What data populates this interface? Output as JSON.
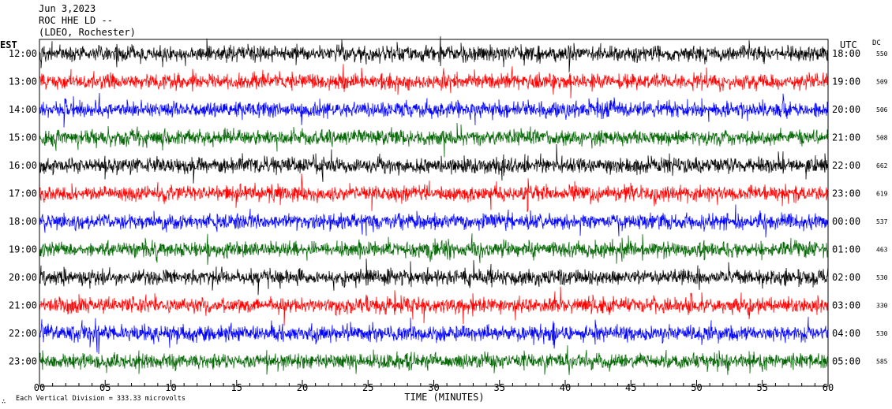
{
  "header": {
    "date": "Jun 3,2023",
    "station": "ROC HHE LD --",
    "network": "(LDEO, Rochester)"
  },
  "left_zone": "EST",
  "right_zone": "UTC",
  "dc_label": "DC",
  "footer": {
    "logo_glyph": "∴",
    "scale_note": "Each Vertical Division =  333.33 microvolts",
    "xlabel": "TIME (MINUTES)"
  },
  "colors": [
    "#000000",
    "#ff0000",
    "#0000ff",
    "#006400"
  ],
  "chart_data": {
    "type": "line",
    "title": "Jun 3,2023 ROC HHE LD -- (LDEO, Rochester)",
    "xlabel": "TIME (MINUTES)",
    "ylabel": "",
    "xlim": [
      0,
      60
    ],
    "x_ticks": [
      "00",
      "05",
      "10",
      "15",
      "20",
      "25",
      "30",
      "35",
      "40",
      "45",
      "50",
      "55",
      "60"
    ],
    "grid": false,
    "traces": [
      {
        "est": "12:00",
        "utc": "18:00",
        "dc": "550"
      },
      {
        "est": "13:00",
        "utc": "19:00",
        "dc": "509"
      },
      {
        "est": "14:00",
        "utc": "20:00",
        "dc": "506"
      },
      {
        "est": "15:00",
        "utc": "21:00",
        "dc": "508"
      },
      {
        "est": "16:00",
        "utc": "22:00",
        "dc": "662"
      },
      {
        "est": "17:00",
        "utc": "23:00",
        "dc": "619"
      },
      {
        "est": "18:00",
        "utc": "00:00",
        "dc": "537"
      },
      {
        "est": "19:00",
        "utc": "01:00",
        "dc": "463"
      },
      {
        "est": "20:00",
        "utc": "02:00",
        "dc": "530"
      },
      {
        "est": "21:00",
        "utc": "03:00",
        "dc": "330"
      },
      {
        "est": "22:00",
        "utc": "04:00",
        "dc": "530"
      },
      {
        "est": "23:00",
        "utc": "05:00",
        "dc": "585"
      }
    ]
  }
}
